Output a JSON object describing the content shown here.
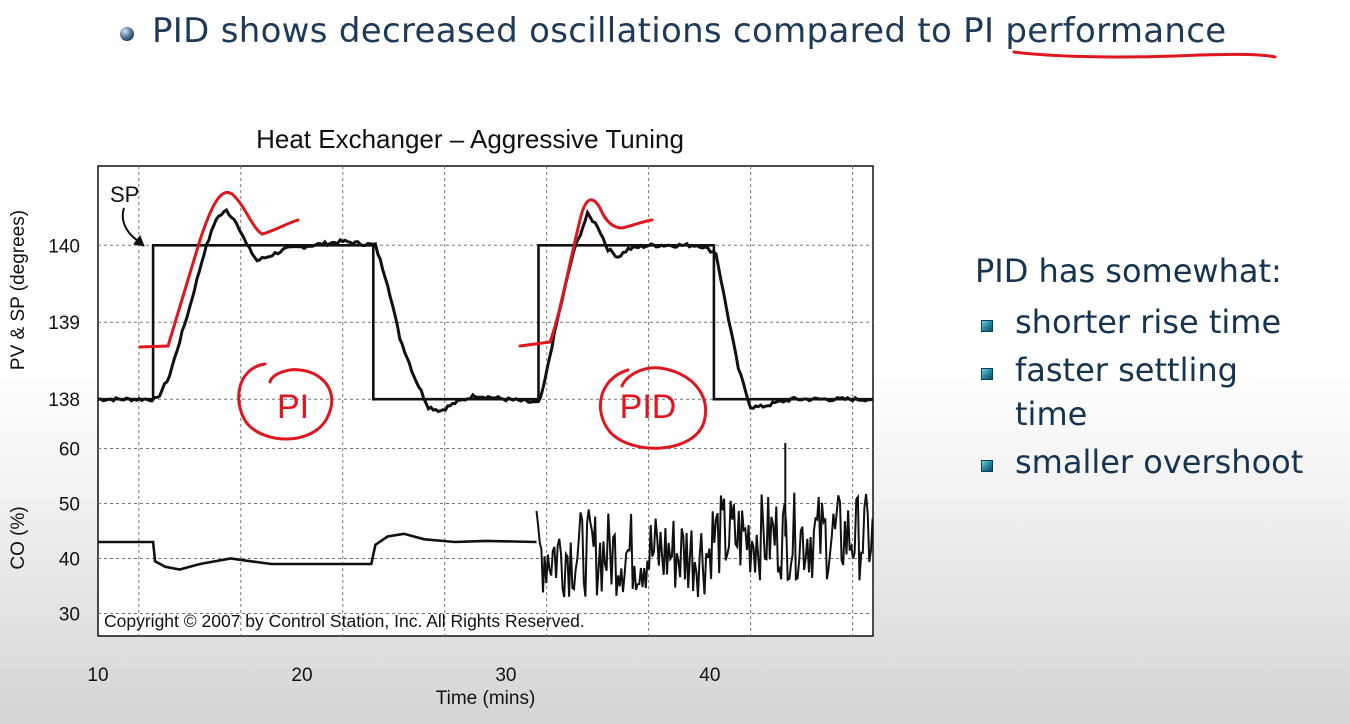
{
  "slide": {
    "headline": "PID shows decreased oscillations compared to PI performance",
    "accent_color": "#e0161e",
    "text_color": "#1e3a56",
    "side_heading": "PID has somewhat:",
    "side_items": [
      {
        "label": "shorter rise time"
      },
      {
        "label": "faster settling time"
      },
      {
        "label": "smaller overshoot"
      }
    ],
    "annotations": {
      "pi": "PI",
      "pid": "PID"
    }
  },
  "chart_data": {
    "type": "line",
    "title": "Heat Exchanger – Aggressive Tuning",
    "xlabel": "Time (mins)",
    "x_ticks": [
      10,
      20,
      30,
      40
    ],
    "xlim": [
      10,
      48
    ],
    "grid": true,
    "copyright": "Copyright © 2007 by Control Station, Inc.   All Rights Reserved.",
    "panels": [
      {
        "ylabel": "PV & SP (degrees)",
        "ylim": [
          137.6,
          140.9
        ],
        "y_ticks": [
          138,
          139,
          140
        ],
        "sp_label": "SP",
        "series": [
          {
            "name": "SP",
            "x": [
              10,
              12.7,
              12.7,
              23.5,
              23.5,
              31.6,
              31.6,
              40.2,
              40.2,
              48
            ],
            "values": [
              138,
              138,
              140,
              140,
              138,
              138,
              140,
              140,
              138,
              138
            ]
          },
          {
            "name": "PV",
            "x": [
              10,
              12.9,
              13.5,
              14.5,
              15.2,
              15.8,
              16.3,
              16.8,
              17.3,
              17.8,
              18.3,
              19.2,
              20.5,
              22,
              23.6,
              24.2,
              24.8,
              25.5,
              26.2,
              26.8,
              27.5,
              28.5,
              30,
              31.6,
              31.8,
              32.5,
              33.3,
              34,
              34.5,
              35,
              35.5,
              36,
              37,
              38.5,
              39.5,
              40.3,
              40.8,
              41.4,
              42,
              42.5,
              43.2,
              44,
              45,
              48
            ],
            "values": [
              138,
              138,
              138.3,
              139.2,
              139.9,
              140.35,
              140.45,
              140.3,
              140.0,
              139.8,
              139.85,
              139.95,
              140.0,
              140.05,
              140.0,
              139.5,
              138.8,
              138.3,
              137.9,
              137.85,
              137.95,
              138.05,
              138.0,
              137.95,
              138.1,
              139.0,
              139.9,
              140.4,
              140.25,
              139.95,
              139.85,
              139.95,
              140.0,
              140.0,
              140.0,
              139.9,
              139.2,
              138.4,
              137.9,
              137.9,
              137.95,
              138.0,
              138.0,
              138.0
            ]
          }
        ]
      },
      {
        "ylabel": "CO (%)",
        "ylim": [
          27,
          63
        ],
        "y_ticks": [
          30,
          40,
          50,
          60
        ],
        "series": [
          {
            "name": "CO",
            "x": [
              10,
              12.7,
              12.8,
              13.3,
              14,
              15,
              16.5,
              17.5,
              18.5,
              20,
              23.4,
              23.6,
              24.2,
              25,
              26,
              27.5,
              29,
              31.5
            ],
            "values": [
              43,
              43,
              39.5,
              38.5,
              38,
              39,
              40,
              39.5,
              39,
              39,
              39,
              42.5,
              44,
              44.5,
              43.5,
              43,
              43.2,
              43
            ],
            "noisy_from": 31.5,
            "noise_mean_before_40": 41,
            "noise_mean_after_40": 44,
            "noise_peak": 61
          }
        ]
      }
    ]
  }
}
